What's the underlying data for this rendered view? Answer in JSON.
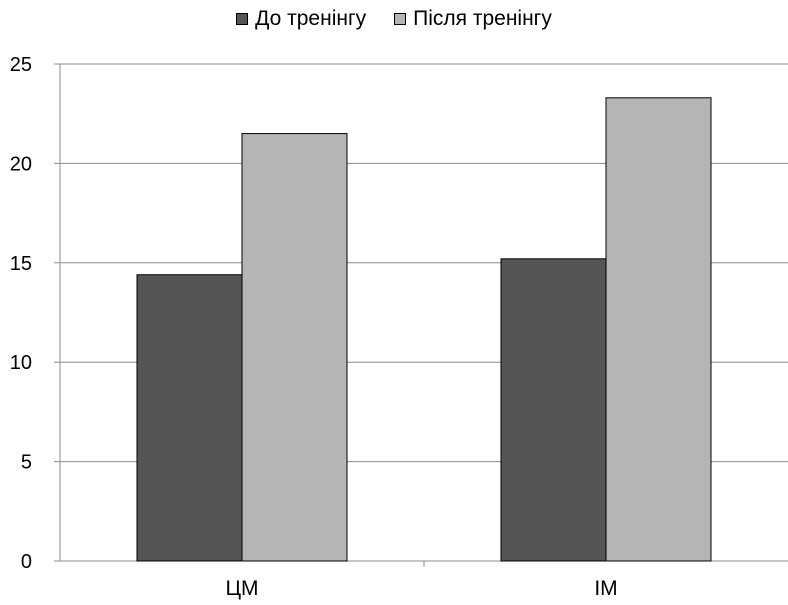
{
  "chart_data": {
    "type": "bar",
    "categories": [
      "ЦМ",
      "ІМ"
    ],
    "series": [
      {
        "name": "До тренінгу",
        "values": [
          14.4,
          15.2
        ],
        "color": "#555555"
      },
      {
        "name": "Після тренінгу",
        "values": [
          21.5,
          23.3
        ],
        "color": "#b5b5b5"
      }
    ],
    "ylim": [
      0,
      25
    ],
    "yticks": [
      0,
      5,
      10,
      15,
      20,
      25
    ],
    "grid": true,
    "legend": "top-center"
  }
}
